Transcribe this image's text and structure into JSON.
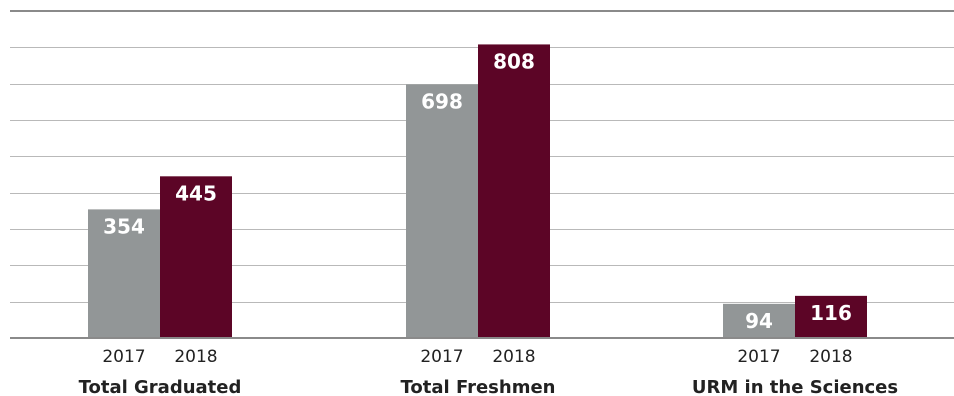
{
  "chart_data": {
    "type": "bar",
    "title": "",
    "xlabel": "",
    "ylabel": "",
    "categories": [
      "Total Graduated",
      "Total Freshmen",
      "URM in the Sciences"
    ],
    "series": [
      {
        "name": "2017",
        "color": "#929697",
        "values": [
          354,
          698,
          94
        ]
      },
      {
        "name": "2018",
        "color": "#5c0526",
        "values": [
          445,
          808,
          116
        ]
      }
    ],
    "ylim": [
      0,
      900
    ],
    "grid": true,
    "gridlines": [
      100,
      200,
      300,
      400,
      500,
      600,
      700,
      800,
      900
    ],
    "axis_color": "#8a8a8a",
    "grid_color": "#b9b9b9",
    "text_color": "#222222",
    "data_label_color": "#ffffff"
  }
}
